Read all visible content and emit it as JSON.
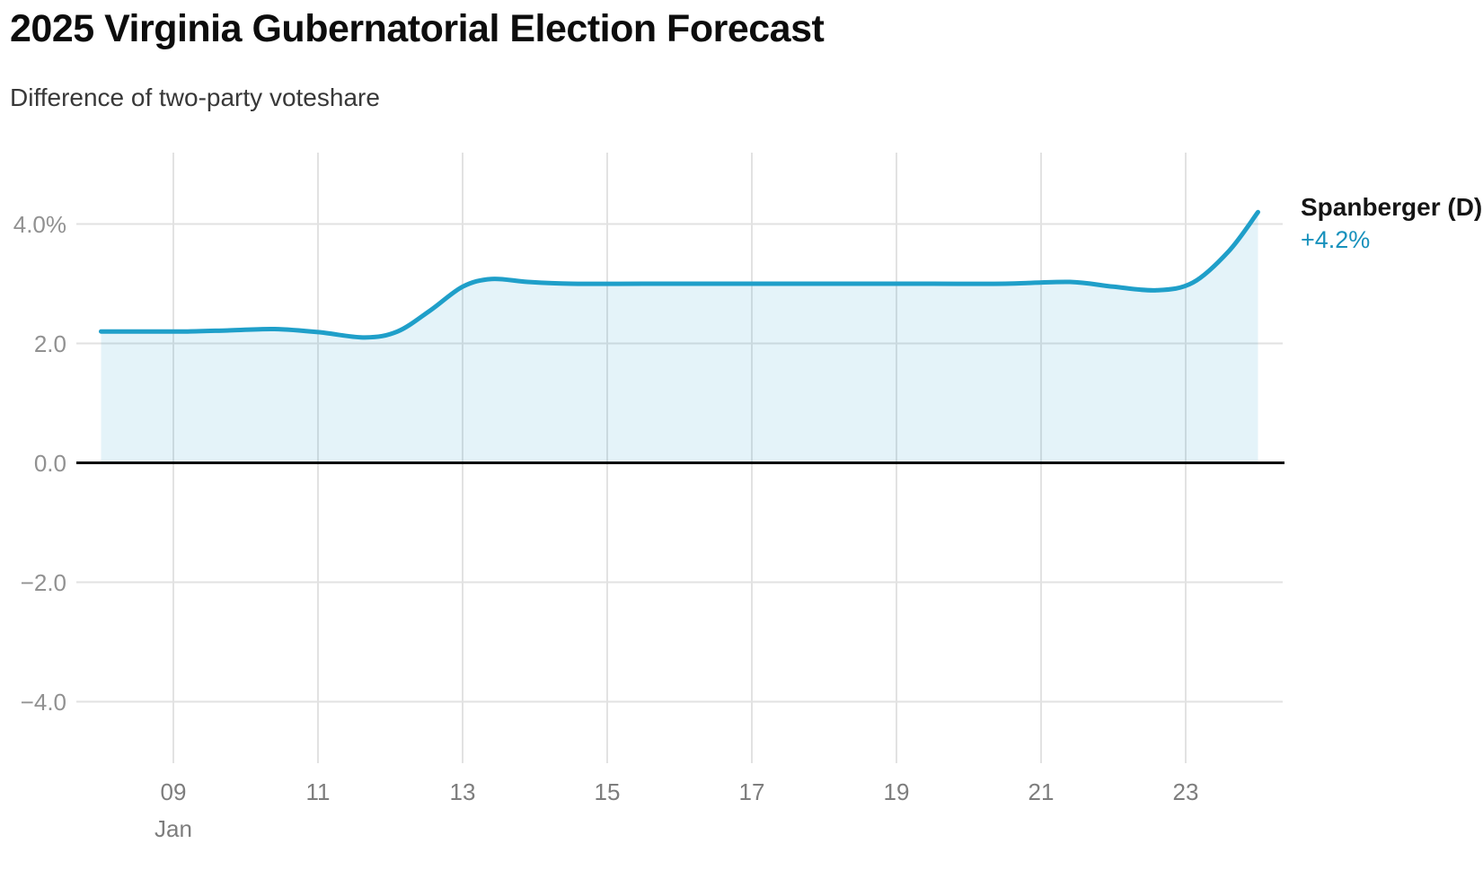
{
  "header": {
    "title": "2025 Virginia Gubernatorial Election Forecast",
    "subtitle": "Difference of two-party voteshare"
  },
  "chart_data": {
    "type": "area",
    "title": "2025 Virginia Gubernatorial Election Forecast",
    "subtitle": "Difference of two-party voteshare",
    "x_unit": "day of January 2025",
    "series": [
      {
        "name": "Spanberger (D)",
        "end_label": "+4.2%",
        "color": "#1f9fc9",
        "fill_color": "rgba(37,160,205,0.12)",
        "points": [
          [
            8.0,
            2.2
          ],
          [
            8.6,
            2.2
          ],
          [
            9.2,
            2.2
          ],
          [
            9.8,
            2.22
          ],
          [
            10.4,
            2.24
          ],
          [
            11.0,
            2.19
          ],
          [
            11.65,
            2.1
          ],
          [
            12.1,
            2.2
          ],
          [
            12.55,
            2.55
          ],
          [
            13.0,
            2.95
          ],
          [
            13.4,
            3.08
          ],
          [
            13.9,
            3.03
          ],
          [
            14.5,
            3.0
          ],
          [
            15.5,
            3.0
          ],
          [
            16.5,
            3.0
          ],
          [
            17.5,
            3.0
          ],
          [
            18.5,
            3.0
          ],
          [
            19.5,
            3.0
          ],
          [
            20.5,
            3.0
          ],
          [
            21.4,
            3.03
          ],
          [
            22.0,
            2.95
          ],
          [
            22.6,
            2.89
          ],
          [
            23.1,
            3.02
          ],
          [
            23.6,
            3.55
          ],
          [
            24.0,
            4.2
          ]
        ]
      }
    ],
    "y_ticks": [
      {
        "label": "4.0%",
        "value": 4
      },
      {
        "label": "2.0",
        "value": 2
      },
      {
        "label": "0.0",
        "value": 0
      },
      {
        "label": "−2.0",
        "value": -2
      },
      {
        "label": "−4.0",
        "value": -4
      }
    ],
    "x_ticks": [
      {
        "label": "09",
        "day": 9
      },
      {
        "label": "11",
        "day": 11
      },
      {
        "label": "13",
        "day": 13
      },
      {
        "label": "15",
        "day": 15
      },
      {
        "label": "17",
        "day": 17
      },
      {
        "label": "19",
        "day": 19
      },
      {
        "label": "21",
        "day": 21
      },
      {
        "label": "23",
        "day": 23
      }
    ],
    "x_month_label": {
      "text": "Jan",
      "day": 9
    },
    "ylim": [
      -5.2,
      5.2
    ],
    "xlim_days": [
      7.7,
      24.3
    ],
    "grid": true,
    "zero_baseline": true,
    "legend_position": "right-of-line-end"
  },
  "colors": {
    "line": "#1f9fc9",
    "area_fill": "rgba(37,160,205,0.12)",
    "value_label": "#1791bc",
    "zero_line": "#000000",
    "gridline": "#e2e2e2",
    "axis_text": "#8b8b8b",
    "title_text": "#0d0d0d",
    "subtitle_text": "#383838"
  }
}
